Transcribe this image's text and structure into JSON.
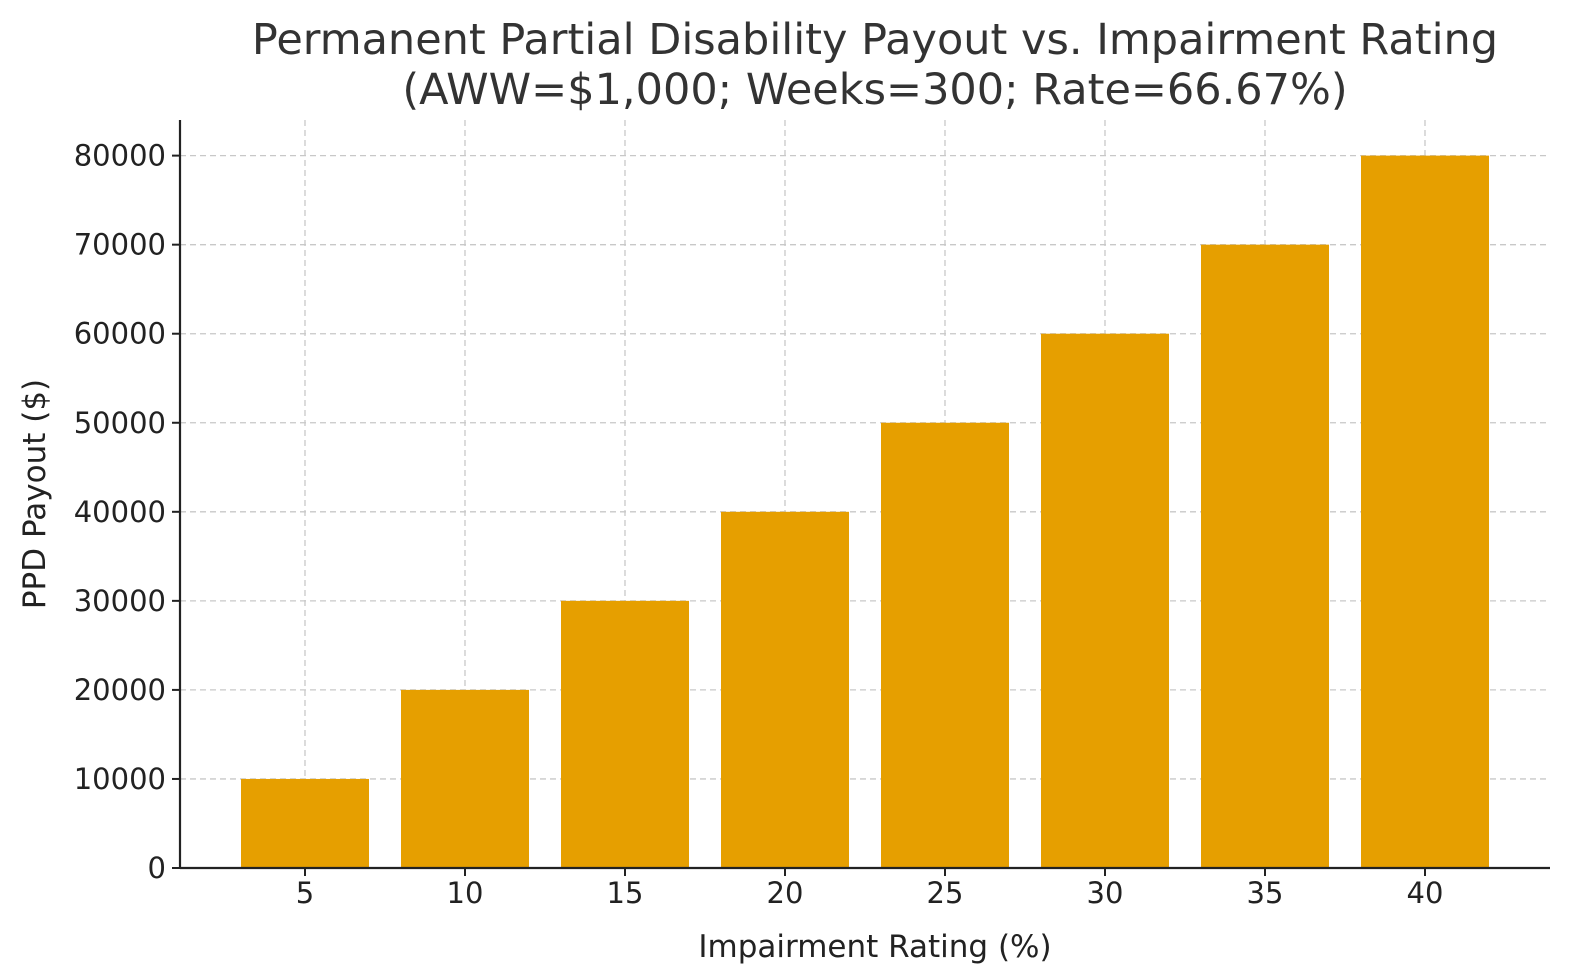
{
  "chart_data": {
    "type": "bar",
    "title": "Permanent Partial Disability Payout vs. Impairment Rating",
    "subtitle": "(AWW=$1,000; Weeks=300; Rate=66.67%)",
    "xlabel": "Impairment Rating (%)",
    "ylabel": "PPD Payout ($)",
    "categories": [
      "5",
      "10",
      "15",
      "20",
      "25",
      "30",
      "35",
      "40"
    ],
    "values": [
      10000,
      20000,
      30000,
      40000,
      50000,
      60000,
      70000,
      80000
    ],
    "ylim": [
      0,
      84000
    ],
    "yticks": [
      0,
      10000,
      20000,
      30000,
      40000,
      50000,
      60000,
      70000,
      80000
    ],
    "bar_color": "#E69F00",
    "grid": true,
    "legend": "none"
  }
}
